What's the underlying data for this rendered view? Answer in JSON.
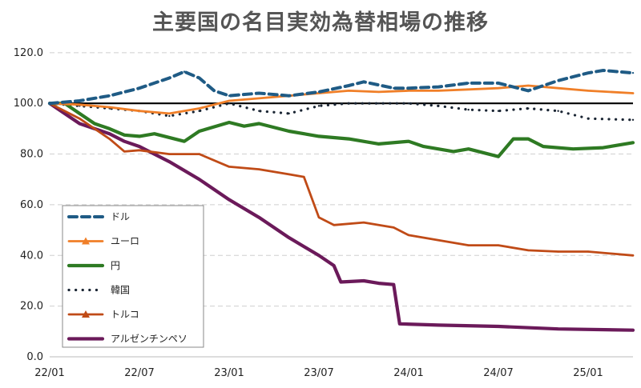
{
  "chart_data": {
    "type": "line",
    "title": "主要国の名目実効為替相場の推移",
    "xlabel": "",
    "ylabel": "",
    "ylim": [
      0,
      125
    ],
    "yticks": [
      "0.0",
      "20.0",
      "40.0",
      "60.0",
      "80.0",
      "100.0",
      "120.0"
    ],
    "xticks": [
      "22/01",
      "22/07",
      "23/01",
      "23/07",
      "24/01",
      "24/07",
      "25/01"
    ],
    "xrange": [
      "2022-01",
      "2025-04"
    ],
    "reference_line": 100,
    "grid": "horizontal dashed",
    "legend_position": "left-bottom",
    "series": [
      {
        "name": "ドル",
        "color": "#1f5b85",
        "style": "dash",
        "points": [
          [
            "2022-01",
            100
          ],
          [
            "2022-03",
            101
          ],
          [
            "2022-05",
            103
          ],
          [
            "2022-07",
            106
          ],
          [
            "2022-09",
            110
          ],
          [
            "2022-10",
            112.5
          ],
          [
            "2022-11",
            110
          ],
          [
            "2022-12",
            105
          ],
          [
            "2023-01",
            103
          ],
          [
            "2023-03",
            104
          ],
          [
            "2023-05",
            103
          ],
          [
            "2023-07",
            104.5
          ],
          [
            "2023-09",
            107
          ],
          [
            "2023-10",
            108.5
          ],
          [
            "2023-12",
            106
          ],
          [
            "2024-01",
            106
          ],
          [
            "2024-03",
            106.5
          ],
          [
            "2024-05",
            108
          ],
          [
            "2024-07",
            108
          ],
          [
            "2024-09",
            105
          ],
          [
            "2024-11",
            109
          ],
          [
            "2025-01",
            112
          ],
          [
            "2025-02",
            113
          ],
          [
            "2025-04",
            112
          ]
        ]
      },
      {
        "name": "ユーロ",
        "color": "#f07f28",
        "style": "solid-marker",
        "points": [
          [
            "2022-01",
            100
          ],
          [
            "2022-03",
            99.5
          ],
          [
            "2022-05",
            98.5
          ],
          [
            "2022-07",
            97
          ],
          [
            "2022-09",
            96
          ],
          [
            "2022-11",
            98
          ],
          [
            "2023-01",
            101
          ],
          [
            "2023-03",
            102
          ],
          [
            "2023-05",
            103
          ],
          [
            "2023-07",
            104
          ],
          [
            "2023-09",
            105
          ],
          [
            "2023-11",
            104.5
          ],
          [
            "2024-01",
            105
          ],
          [
            "2024-03",
            105
          ],
          [
            "2024-05",
            105.5
          ],
          [
            "2024-07",
            106
          ],
          [
            "2024-09",
            107
          ],
          [
            "2024-11",
            106
          ],
          [
            "2025-01",
            105
          ],
          [
            "2025-04",
            104
          ]
        ]
      },
      {
        "name": "円",
        "color": "#2e7a23",
        "style": "thick",
        "points": [
          [
            "2022-01",
            100
          ],
          [
            "2022-02",
            100
          ],
          [
            "2022-03",
            96
          ],
          [
            "2022-04",
            92
          ],
          [
            "2022-05",
            90
          ],
          [
            "2022-06",
            87.5
          ],
          [
            "2022-07",
            87
          ],
          [
            "2022-08",
            88
          ],
          [
            "2022-10",
            85
          ],
          [
            "2022-11",
            89
          ],
          [
            "2023-01",
            92.5
          ],
          [
            "2023-02",
            91
          ],
          [
            "2023-03",
            92
          ],
          [
            "2023-05",
            89
          ],
          [
            "2023-07",
            87
          ],
          [
            "2023-09",
            86
          ],
          [
            "2023-11",
            84
          ],
          [
            "2024-01",
            85
          ],
          [
            "2024-02",
            83
          ],
          [
            "2024-04",
            81
          ],
          [
            "2024-05",
            82
          ],
          [
            "2024-07",
            79
          ],
          [
            "2024-08",
            86
          ],
          [
            "2024-09",
            86
          ],
          [
            "2024-10",
            83
          ],
          [
            "2024-12",
            82
          ],
          [
            "2025-02",
            82.5
          ],
          [
            "2025-04",
            84.5
          ]
        ]
      },
      {
        "name": "韓国",
        "color": "#1a2533",
        "style": "dot",
        "points": [
          [
            "2022-01",
            100
          ],
          [
            "2022-03",
            99
          ],
          [
            "2022-05",
            98
          ],
          [
            "2022-07",
            97
          ],
          [
            "2022-09",
            95
          ],
          [
            "2022-11",
            97
          ],
          [
            "2023-01",
            100
          ],
          [
            "2023-03",
            97
          ],
          [
            "2023-05",
            96
          ],
          [
            "2023-07",
            99
          ],
          [
            "2023-09",
            100
          ],
          [
            "2023-11",
            100
          ],
          [
            "2024-01",
            100
          ],
          [
            "2024-03",
            99
          ],
          [
            "2024-05",
            97.5
          ],
          [
            "2024-07",
            97
          ],
          [
            "2024-09",
            98
          ],
          [
            "2024-11",
            97
          ],
          [
            "2025-01",
            94
          ],
          [
            "2025-04",
            93.5
          ]
        ]
      },
      {
        "name": "トルコ",
        "color": "#c04b17",
        "style": "solid-marker",
        "points": [
          [
            "2022-01",
            100
          ],
          [
            "2022-03",
            94
          ],
          [
            "2022-05",
            86
          ],
          [
            "2022-06",
            81
          ],
          [
            "2022-07",
            81.5
          ],
          [
            "2022-09",
            80
          ],
          [
            "2022-11",
            80
          ],
          [
            "2023-01",
            75
          ],
          [
            "2023-03",
            74
          ],
          [
            "2023-05",
            72
          ],
          [
            "2023-06",
            71
          ],
          [
            "2023-07",
            55
          ],
          [
            "2023-08",
            52
          ],
          [
            "2023-10",
            53
          ],
          [
            "2023-12",
            51
          ],
          [
            "2024-01",
            48
          ],
          [
            "2024-03",
            46
          ],
          [
            "2024-05",
            44
          ],
          [
            "2024-07",
            44
          ],
          [
            "2024-09",
            42
          ],
          [
            "2024-11",
            41.5
          ],
          [
            "2025-01",
            41.5
          ],
          [
            "2025-04",
            40
          ]
        ]
      },
      {
        "name": "アルゼンチンペソ",
        "color": "#6b1a5a",
        "style": "thick",
        "points": [
          [
            "2022-01",
            100
          ],
          [
            "2022-03",
            92
          ],
          [
            "2022-05",
            88
          ],
          [
            "2022-06",
            85
          ],
          [
            "2022-07",
            83
          ],
          [
            "2022-09",
            77
          ],
          [
            "2022-11",
            70
          ],
          [
            "2023-01",
            62
          ],
          [
            "2023-03",
            55
          ],
          [
            "2023-05",
            47
          ],
          [
            "2023-07",
            40
          ],
          [
            "2023-08",
            36
          ],
          [
            "2023-08-15",
            29.5
          ],
          [
            "2023-10",
            30
          ],
          [
            "2023-11",
            29
          ],
          [
            "2023-12",
            28.5
          ],
          [
            "2023-12-13",
            13
          ],
          [
            "2024-03",
            12.5
          ],
          [
            "2024-07",
            12
          ],
          [
            "2024-11",
            11
          ],
          [
            "2025-04",
            10.5
          ]
        ]
      }
    ]
  }
}
